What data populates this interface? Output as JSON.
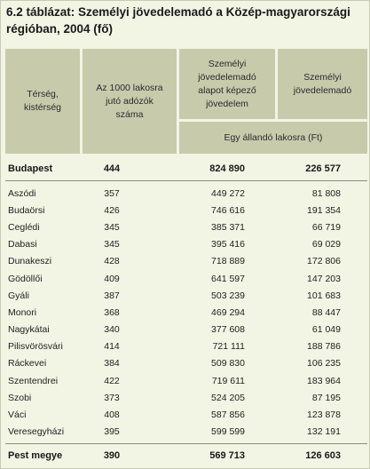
{
  "title": "6.2 táblázat: Személyi jövedelemadó a Közép-magyarországi régióban, 2004 (fő)",
  "headers": {
    "col1": "Térség, kistérség",
    "col2": "Az 1000 lakosra jutó adózók száma",
    "col3": "Személyi jövedelemadó alapot képező jövedelem",
    "col4": "Személyi jövedelemadó",
    "subheader": "Egy állandó lakosra (Ft)"
  },
  "budapest": {
    "name": "Budapest",
    "a": "444",
    "b": "824 890",
    "c": "226 577"
  },
  "rows": [
    {
      "name": "Aszódi",
      "a": "357",
      "b": "449 272",
      "c": "81 808"
    },
    {
      "name": "Budaörsi",
      "a": "426",
      "b": "746 616",
      "c": "191 354"
    },
    {
      "name": "Ceglédi",
      "a": "345",
      "b": "385 371",
      "c": "66 719"
    },
    {
      "name": "Dabasi",
      "a": "345",
      "b": "395 416",
      "c": "69 029"
    },
    {
      "name": "Dunakeszi",
      "a": "428",
      "b": "718 889",
      "c": "172 806"
    },
    {
      "name": "Gödöllői",
      "a": "409",
      "b": "641 597",
      "c": "147 203"
    },
    {
      "name": "Gyáli",
      "a": "387",
      "b": "503 239",
      "c": "101 683"
    },
    {
      "name": "Monori",
      "a": "368",
      "b": "469 294",
      "c": "88 447"
    },
    {
      "name": "Nagykátai",
      "a": "340",
      "b": "377 608",
      "c": "61 049"
    },
    {
      "name": "Pilisvörösvári",
      "a": "414",
      "b": "721 111",
      "c": "188 786"
    },
    {
      "name": "Ráckevei",
      "a": "384",
      "b": "509 830",
      "c": "106 235"
    },
    {
      "name": "Szentendrei",
      "a": "422",
      "b": "719 611",
      "c": "183 964"
    },
    {
      "name": "Szobi",
      "a": "373",
      "b": "524 205",
      "c": "87 195"
    },
    {
      "name": "Váci",
      "a": "408",
      "b": "587 856",
      "c": "123 878"
    },
    {
      "name": "Veresegyházi",
      "a": "395",
      "b": "599 599",
      "c": "132 191"
    }
  ],
  "pest": {
    "name": "Pest megye",
    "a": "390",
    "b": "569 713",
    "c": "126 603"
  },
  "colors": {
    "header_bg": "#c7cbac",
    "page_bg": "#f2f4e4",
    "rule": "#8c8f78"
  }
}
